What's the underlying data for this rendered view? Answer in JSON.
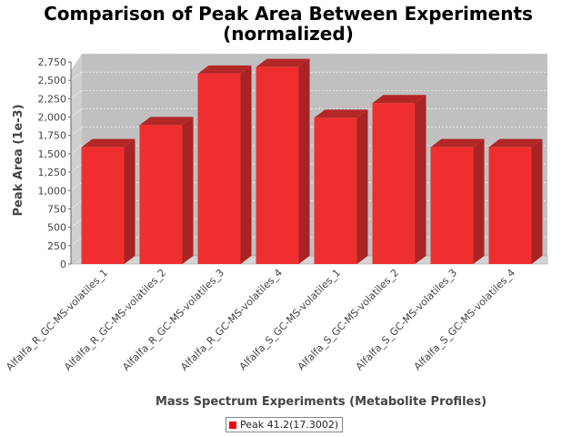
{
  "chart_data": {
    "type": "bar",
    "title_line1": "Comparison of Peak Area Between Experiments",
    "title_line2": "(normalized)",
    "xlabel": "Mass Spectrum Experiments (Metabolite Profiles)",
    "ylabel": "Peak Area (1e-3)",
    "ylim": [
      0,
      2750
    ],
    "yticks": [
      0,
      250,
      500,
      750,
      1000,
      1250,
      1500,
      1750,
      2000,
      2250,
      2500,
      2750
    ],
    "ytick_labels": [
      "0",
      "250",
      "500",
      "750",
      "1,000",
      "1,250",
      "1,500",
      "1,750",
      "2,000",
      "2,250",
      "2,500",
      "2,750"
    ],
    "categories": [
      "Alfalfa_R_GC-MS-volatiles_1",
      "Alfalfa_R_GC-MS-volatiles_2",
      "Alfalfa_R_GC-MS-volatiles_3",
      "Alfalfa_R_GC-MS-volatiles_4",
      "Alfalfa_S_GC-MS-volatiles_1",
      "Alfalfa_S_GC-MS-volatiles_2",
      "Alfalfa_S_GC-MS-volatiles_3",
      "Alfalfa_S_GC-MS-volatiles_4"
    ],
    "series": [
      {
        "name": "Peak 41.2(17.3002)",
        "values": [
          1590,
          1890,
          2590,
          2680,
          1990,
          2190,
          1590,
          1590
        ],
        "color": "#ff0000"
      }
    ],
    "grid": true,
    "legend_position": "bottom",
    "colors": {
      "plot_background": "#c0c0c0",
      "bar_front": "#ef2f2f",
      "bar_top": "#b42727",
      "bar_side": "#a82424"
    }
  }
}
